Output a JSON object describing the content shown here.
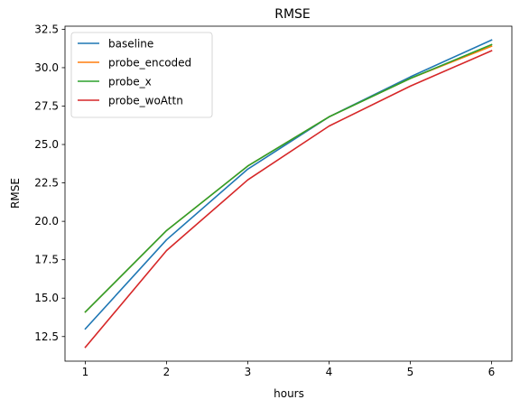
{
  "chart_data": {
    "type": "line",
    "title": "RMSE",
    "xlabel": "hours",
    "ylabel": "RMSE",
    "x": [
      1,
      2,
      3,
      4,
      5,
      6
    ],
    "xlim": [
      0.75,
      6.25
    ],
    "ylim": [
      10.9,
      32.7
    ],
    "xticks": [
      1,
      2,
      3,
      4,
      5,
      6
    ],
    "yticks": [
      12.5,
      15.0,
      17.5,
      20.0,
      22.5,
      25.0,
      27.5,
      30.0,
      32.5
    ],
    "grid": false,
    "legend_position": "top-left",
    "series": [
      {
        "name": "baseline",
        "color": "#1f77b4",
        "values": [
          13.0,
          18.8,
          23.4,
          26.8,
          29.4,
          31.8
        ]
      },
      {
        "name": "probe_encoded",
        "color": "#ff7f0e",
        "values": [
          14.1,
          19.4,
          23.6,
          26.8,
          29.3,
          31.4
        ]
      },
      {
        "name": "probe_x",
        "color": "#2ca02c",
        "values": [
          14.1,
          19.4,
          23.6,
          26.8,
          29.3,
          31.5
        ]
      },
      {
        "name": "probe_woAttn",
        "color": "#d62728",
        "values": [
          11.8,
          18.1,
          22.7,
          26.2,
          28.8,
          31.1
        ]
      }
    ]
  }
}
